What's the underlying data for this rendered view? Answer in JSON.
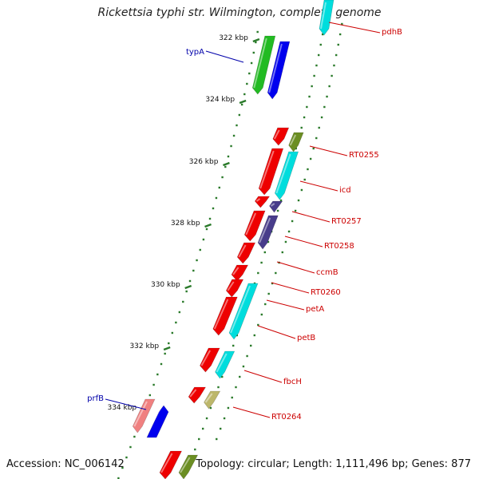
{
  "title": "Rickettsia typhi str. Wilmington, complete genome",
  "footer": {
    "accession": "Accession: NC_006142",
    "summary": "Topology: circular; Length: 1,111,496 bp; Genes: 877"
  },
  "ticks": [
    "322 kbp",
    "324 kbp",
    "326 kbp",
    "328 kbp",
    "330 kbp",
    "332 kbp",
    "334 kbp"
  ],
  "gene_labels": [
    {
      "text": "typA",
      "color": "#0000aa"
    },
    {
      "text": "prfB",
      "color": "#0000aa"
    },
    {
      "text": "pdhB",
      "color": "#cc0000"
    },
    {
      "text": "RT0255",
      "color": "#cc0000"
    },
    {
      "text": "icd",
      "color": "#cc0000"
    },
    {
      "text": "RT0257",
      "color": "#cc0000"
    },
    {
      "text": "RT0258",
      "color": "#cc0000"
    },
    {
      "text": "ccmB",
      "color": "#cc0000"
    },
    {
      "text": "RT0260",
      "color": "#cc0000"
    },
    {
      "text": "petA",
      "color": "#cc0000"
    },
    {
      "text": "petB",
      "color": "#cc0000"
    },
    {
      "text": "fbcH",
      "color": "#cc0000"
    },
    {
      "text": "RT0264",
      "color": "#cc0000"
    }
  ],
  "colors": {
    "backbone": "#888888",
    "tick": "#2a7a2a",
    "cds_red": "#ee0000",
    "cds_green": "#22bb22",
    "cds_blue": "#0000ee",
    "cds_cyan": "#00dddd",
    "cds_olive": "#6b8e23",
    "cds_navy": "#483d8b",
    "cds_pink": "#f08080",
    "cds_khaki": "#bdb76b"
  }
}
